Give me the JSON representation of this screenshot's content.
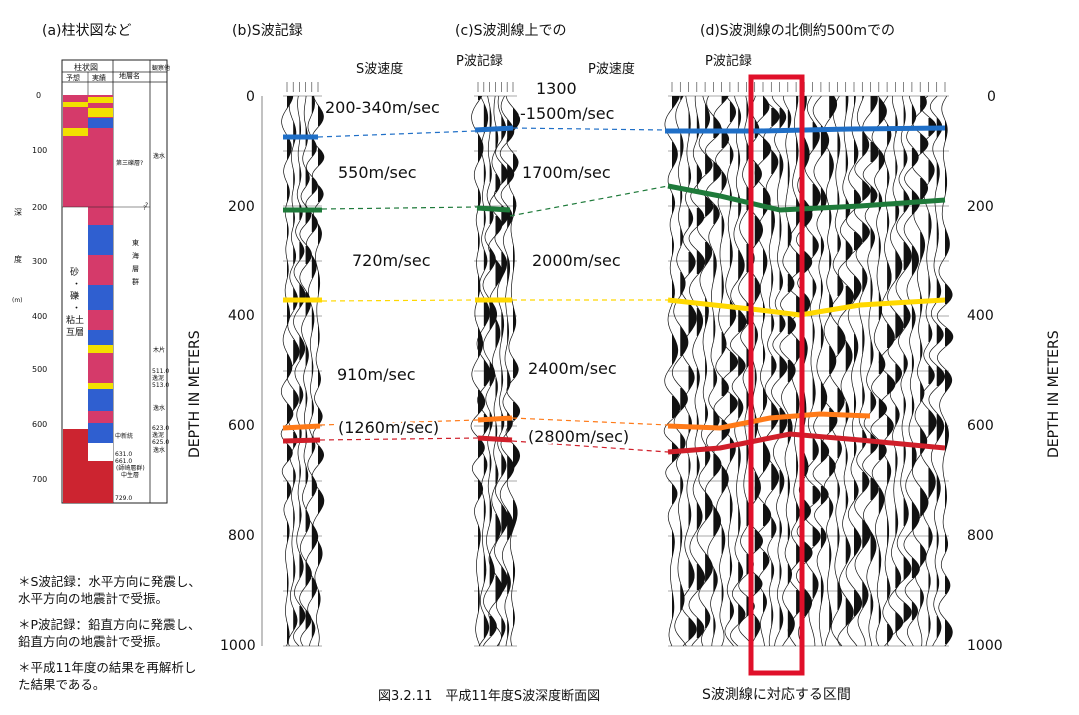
{
  "panels": {
    "a": "(a)柱状図など",
    "b": "(b)S波記録",
    "c": "(c)S波測線上での",
    "d": "(d)S波測線の北側約500mでの"
  },
  "headers": {
    "s_velocity": "S波速度",
    "p_record_c": "P波記録",
    "p_velocity": "P波速度",
    "p_record_d": "P波記録"
  },
  "column": {
    "header_main": "柱状図",
    "header_sub1": "予想",
    "header_sub2": "実績",
    "header_formation": "地層名",
    "header_remarks": "観察他",
    "depth_axis_label": [
      "深",
      "度",
      "(m)"
    ],
    "depth_ticks": [
      "0",
      "100",
      "200",
      "300",
      "400",
      "500",
      "600",
      "700"
    ],
    "formation_1": "第三礫層?",
    "formation_2": [
      "東",
      "海",
      "層",
      "群"
    ],
    "lithology": [
      "砂",
      "・",
      "礫",
      "・",
      "粘土",
      "互層"
    ],
    "remarks": [
      "逸水",
      "?",
      "木片",
      "逸水",
      "逸水"
    ],
    "small_labels": [
      "511.0",
      "逸泥",
      "513.0",
      "623.0",
      "逸泥",
      "625.0",
      "631.0",
      "中新統",
      "661.0",
      "(師崎層群)",
      "中生層",
      "729.0",
      "?"
    ]
  },
  "depth_scale": {
    "label": "DEPTH IN METERS",
    "ticks_left": [
      "0",
      "200",
      "400",
      "600",
      "800",
      "1000"
    ],
    "ticks_right": [
      "0",
      "200",
      "400",
      "600",
      "800",
      "1000"
    ]
  },
  "s_velocities": [
    "200-340m/sec",
    "550m/sec",
    "720m/sec",
    "910m/sec",
    "(1260m/sec)"
  ],
  "p_velocities": [
    "1300",
    "-1500m/sec",
    "1700m/sec",
    "2000m/sec",
    "2400m/sec",
    "(2800m/sec)"
  ],
  "horizons": [
    {
      "color": "#1f6fc7"
    },
    {
      "color": "#1e7a3a"
    },
    {
      "color": "#ffd800"
    },
    {
      "color": "#ff7a18"
    },
    {
      "color": "#d01f2a"
    }
  ],
  "notes": [
    "＊S波記録：水平方向に発震し、",
    "水平方向の地震計で受振。",
    "＊P波記録：鉛直方向に発震し、",
    "鉛直方向の地震計で受振。",
    "＊平成11年度の結果を再解析し",
    "た結果である。"
  ],
  "caption": "図3.2.11　平成11年度S波深度断面図",
  "box_caption": "S波測線に対応する区間",
  "colors": {
    "clay": "#d53a6a",
    "sand": "#2f5fd0",
    "gravel": "#f2e000",
    "mesozoic": "#cc2430",
    "box": "#e0102a"
  }
}
